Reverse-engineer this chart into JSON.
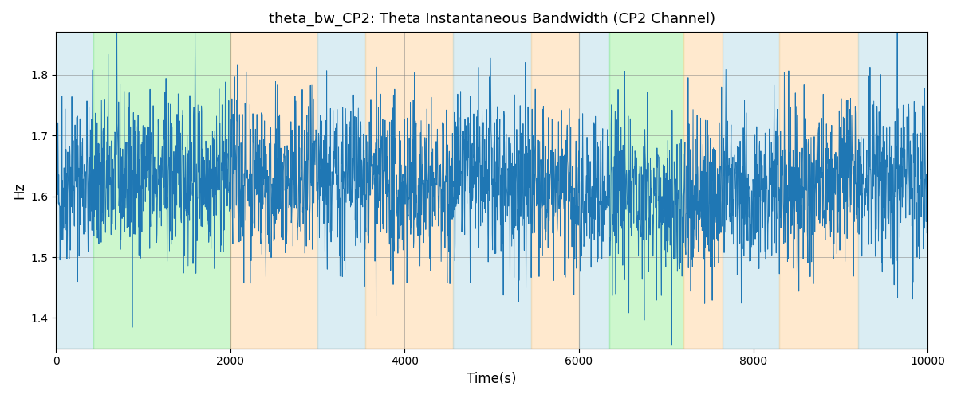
{
  "title": "theta_bw_CP2: Theta Instantaneous Bandwidth (CP2 Channel)",
  "xlabel": "Time(s)",
  "ylabel": "Hz",
  "xlim": [
    0,
    10000
  ],
  "ylim": [
    1.35,
    1.87
  ],
  "line_color": "#1f77b4",
  "line_width": 0.7,
  "background_regions": [
    {
      "xmin": 0,
      "xmax": 430,
      "color": "#add8e6",
      "alpha": 0.45
    },
    {
      "xmin": 430,
      "xmax": 2000,
      "color": "#90ee90",
      "alpha": 0.45
    },
    {
      "xmin": 2000,
      "xmax": 3000,
      "color": "#ffd59e",
      "alpha": 0.5
    },
    {
      "xmin": 3000,
      "xmax": 3550,
      "color": "#add8e6",
      "alpha": 0.45
    },
    {
      "xmin": 3550,
      "xmax": 4550,
      "color": "#ffd59e",
      "alpha": 0.5
    },
    {
      "xmin": 4550,
      "xmax": 5450,
      "color": "#add8e6",
      "alpha": 0.45
    },
    {
      "xmin": 5450,
      "xmax": 6000,
      "color": "#ffd59e",
      "alpha": 0.5
    },
    {
      "xmin": 6000,
      "xmax": 6350,
      "color": "#add8e6",
      "alpha": 0.45
    },
    {
      "xmin": 6350,
      "xmax": 7200,
      "color": "#90ee90",
      "alpha": 0.45
    },
    {
      "xmin": 7200,
      "xmax": 7650,
      "color": "#ffd59e",
      "alpha": 0.5
    },
    {
      "xmin": 7650,
      "xmax": 8300,
      "color": "#add8e6",
      "alpha": 0.45
    },
    {
      "xmin": 8300,
      "xmax": 9200,
      "color": "#ffd59e",
      "alpha": 0.5
    },
    {
      "xmin": 9200,
      "xmax": 10000,
      "color": "#add8e6",
      "alpha": 0.45
    }
  ],
  "xticks": [
    0,
    2000,
    4000,
    6000,
    8000,
    10000
  ],
  "yticks": [
    1.4,
    1.5,
    1.6,
    1.7,
    1.8
  ],
  "figsize": [
    12.0,
    5.0
  ],
  "dpi": 100,
  "seed": 42,
  "n_points": 3000,
  "base_freq": 1.617,
  "noise_std": 0.065
}
